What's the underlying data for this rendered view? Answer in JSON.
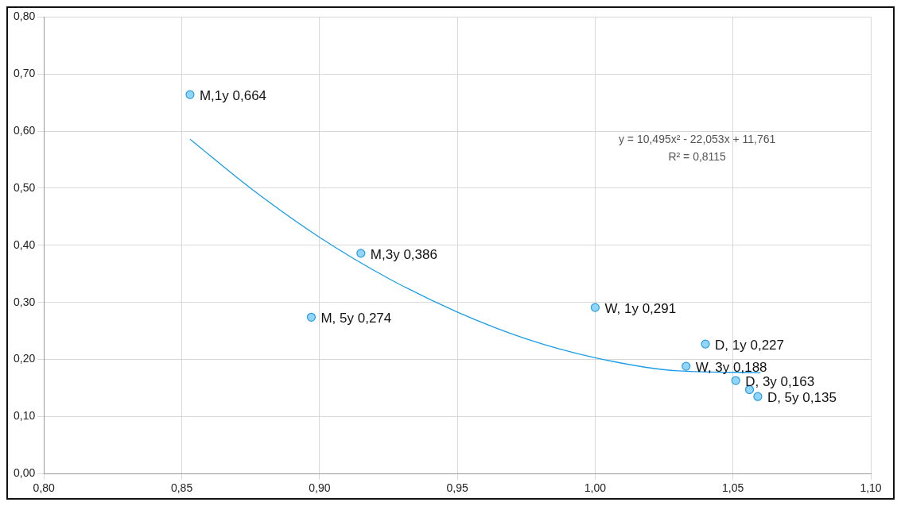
{
  "chart_data": {
    "type": "scatter",
    "grid": true,
    "xlim": [
      0.8,
      1.1
    ],
    "xticks": [
      {
        "value": 0.8,
        "label": "0,80"
      },
      {
        "value": 0.85,
        "label": "0,85"
      },
      {
        "value": 0.9,
        "label": "0,90"
      },
      {
        "value": 0.95,
        "label": "0,95"
      },
      {
        "value": 1.0,
        "label": "1,00"
      },
      {
        "value": 1.05,
        "label": "1,05"
      },
      {
        "value": 1.1,
        "label": "1,10"
      }
    ],
    "ylim": [
      0,
      0.8
    ],
    "yticks": [
      {
        "value": 0,
        "label": "0,00"
      },
      {
        "value": 0.1,
        "label": "0,10"
      },
      {
        "value": 0.2,
        "label": "0,20"
      },
      {
        "value": 0.3,
        "label": "0,30"
      },
      {
        "value": 0.4,
        "label": "0,40"
      },
      {
        "value": 0.5,
        "label": "0,50"
      },
      {
        "value": 0.6,
        "label": "0,60"
      },
      {
        "value": 0.7,
        "label": "0,70"
      },
      {
        "value": 0.8,
        "label": "0,80"
      }
    ],
    "annotations": [
      "y = 10,495x² - 22,053x + 11,761",
      "R² = 0,8115"
    ],
    "series": [
      {
        "type": "scatter",
        "marker": "circle",
        "color": "#2a9be0",
        "x": [
          0.853,
          0.915,
          0.897,
          1.0,
          1.04,
          1.033,
          1.051,
          1.056,
          1.059
        ],
        "values": [
          0.664,
          0.386,
          0.274,
          0.291,
          0.227,
          0.188,
          0.163,
          0.147,
          0.135
        ],
        "value_labels": [
          "M,1y 0,664",
          "M,3y 0,386",
          "M, 5y 0,274",
          "W, 1y 0,291",
          "D, 1y 0,227",
          "W, 3y 0,188",
          "D, 3y 0,163",
          null,
          "D, 5y 0,135"
        ]
      },
      {
        "type": "line",
        "marker": "none",
        "color": "#1a9de8",
        "x": [
          0.853,
          0.875,
          0.9,
          0.925,
          0.95,
          0.975,
          1.0,
          1.03,
          1.06
        ],
        "values": [
          0.586,
          0.5,
          0.414,
          0.342,
          0.283,
          0.236,
          0.203,
          0.18,
          0.177
        ]
      }
    ]
  }
}
